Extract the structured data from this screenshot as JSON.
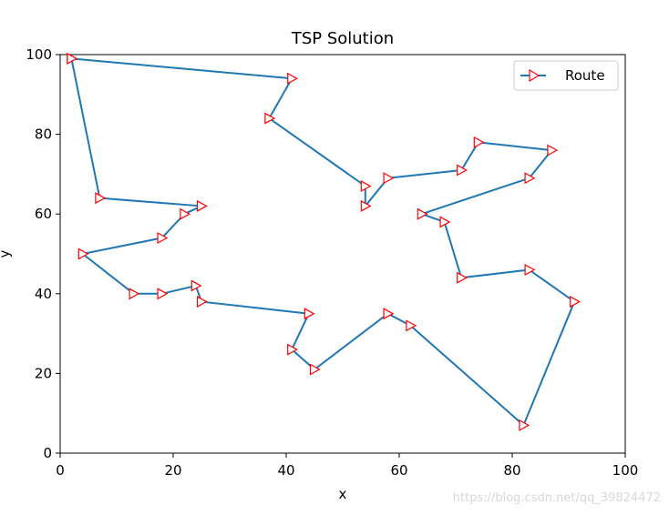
{
  "chart_data": {
    "type": "line",
    "title": "TSP Solution",
    "xlabel": "x",
    "ylabel": "y",
    "xlim": [
      0,
      100
    ],
    "ylim": [
      0,
      100
    ],
    "xticks": [
      0,
      20,
      40,
      60,
      80,
      100
    ],
    "yticks": [
      0,
      20,
      40,
      60,
      80,
      100
    ],
    "grid": false,
    "legend_position": "top-right",
    "series": [
      {
        "name": "Route",
        "line_color": "#1f77b4",
        "marker": "triangle-right",
        "marker_edge_color": "#ff0000",
        "marker_face_color": "#ffffff",
        "x": [
          2,
          41,
          37,
          54,
          54,
          58,
          71,
          74,
          87,
          83,
          64,
          68,
          71,
          83,
          91,
          82,
          62,
          58,
          45,
          41,
          44,
          25,
          24,
          18,
          13,
          4,
          18,
          22,
          25,
          7,
          2
        ],
        "y": [
          99,
          94,
          84,
          67,
          62,
          69,
          71,
          78,
          76,
          69,
          60,
          58,
          44,
          46,
          38,
          7,
          32,
          35,
          21,
          26,
          35,
          38,
          42,
          40,
          40,
          50,
          54,
          60,
          62,
          64,
          99
        ]
      }
    ]
  },
  "watermark": "https://blog.csdn.net/qq_39824472"
}
